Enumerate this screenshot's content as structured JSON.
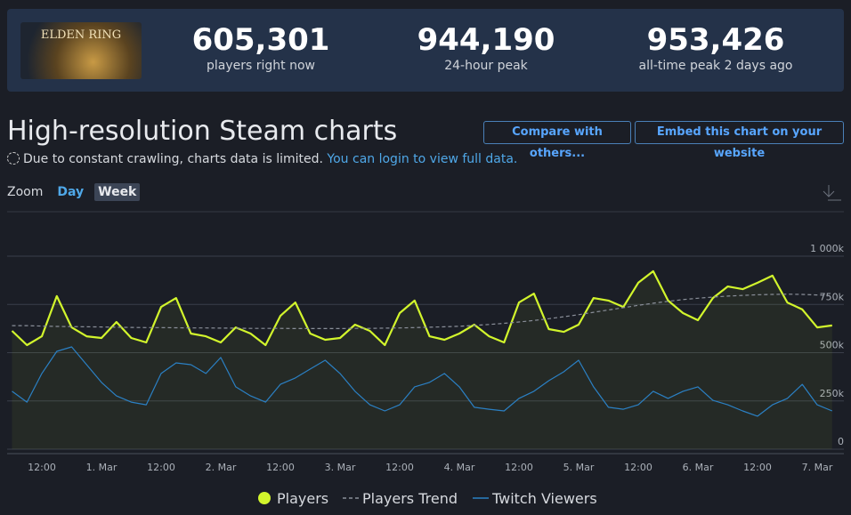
{
  "header": {
    "game_logo": "ELDEN RING",
    "stats": [
      {
        "value": "605,301",
        "label": "players right now"
      },
      {
        "value": "944,190",
        "label": "24-hour peak"
      },
      {
        "value": "953,426",
        "label": "all-time peak 2 days ago"
      }
    ]
  },
  "page": {
    "title": "High-resolution Steam charts",
    "buttons": [
      "Compare with others...",
      "Embed this chart on your website"
    ],
    "notice": "Due to constant crawling, charts data is limited.",
    "notice_link": "You can login to view full data.",
    "zoom_label": "Zoom",
    "zoom_options": [
      "Day",
      "Week"
    ]
  },
  "chart_data": {
    "type": "line",
    "categories": [
      null,
      null,
      "12:00",
      null,
      null,
      null,
      "1. Mar",
      null,
      null,
      null,
      "12:00",
      null,
      null,
      null,
      "2. Mar",
      null,
      null,
      null,
      "12:00",
      null,
      null,
      null,
      "3. Mar",
      null,
      null,
      null,
      "12:00",
      null,
      null,
      null,
      "4. Mar",
      null,
      null,
      null,
      "12:00",
      null,
      null,
      null,
      "5. Mar",
      null,
      null,
      null,
      "12:00",
      null,
      null,
      null,
      "6. Mar",
      null,
      null,
      null,
      "12:00",
      null,
      null,
      null,
      "7. Mar",
      null
    ],
    "series": [
      {
        "name": "Players",
        "color": "#d2f52c",
        "values": [
          613000,
          539000,
          585000,
          793000,
          631000,
          585000,
          576000,
          659000,
          576000,
          553000,
          737000,
          783000,
          599000,
          585000,
          553000,
          631000,
          599000,
          539000,
          691000,
          760000,
          599000,
          567000,
          576000,
          645000,
          613000,
          539000,
          705000,
          770000,
          585000,
          567000,
          599000,
          645000,
          585000,
          553000,
          760000,
          806000,
          622000,
          608000,
          645000,
          783000,
          770000,
          737000,
          862000,
          922000,
          770000,
          705000,
          668000,
          783000,
          843000,
          829000,
          862000,
          899000,
          760000,
          724000,
          631000,
          641000
        ]
      },
      {
        "name": "Players Trend",
        "color": "#8a8f99",
        "values": [
          640000,
          640000,
          638000,
          636000,
          635000,
          634000,
          633000,
          632000,
          631000,
          630000,
          630000,
          629000,
          628000,
          628000,
          627000,
          627000,
          626000,
          626000,
          626000,
          625000,
          625000,
          625000,
          625000,
          626000,
          626000,
          627000,
          628000,
          630000,
          632000,
          634000,
          637000,
          641000,
          646000,
          652000,
          659000,
          667000,
          676000,
          686000,
          697000,
          709000,
          721000,
          733000,
          745000,
          756000,
          766000,
          775000,
          782000,
          788000,
          793000,
          797000,
          800000,
          802000,
          803000,
          802000,
          799000,
          795000
        ]
      },
      {
        "name": "Twitch Viewers",
        "color": "#2b80c4",
        "values": [
          300000,
          244000,
          392000,
          507000,
          530000,
          438000,
          346000,
          276000,
          244000,
          230000,
          392000,
          447000,
          438000,
          392000,
          475000,
          323000,
          276000,
          244000,
          336000,
          369000,
          415000,
          461000,
          392000,
          300000,
          230000,
          198000,
          230000,
          323000,
          346000,
          392000,
          323000,
          217000,
          207000,
          198000,
          263000,
          300000,
          355000,
          401000,
          461000,
          323000,
          217000,
          207000,
          230000,
          300000,
          263000,
          300000,
          323000,
          253000,
          230000,
          198000,
          171000,
          230000,
          263000,
          336000,
          230000,
          198000
        ]
      }
    ],
    "ylim": [
      0,
      1000000
    ],
    "yticks": [
      0,
      {
        "value": 250000,
        "label": "250k"
      },
      {
        "value": 500000,
        "label": "500k"
      },
      {
        "value": 750000,
        "label": "750k"
      },
      {
        "value": 1000000,
        "label": "1 000k"
      }
    ],
    "grid": true
  }
}
